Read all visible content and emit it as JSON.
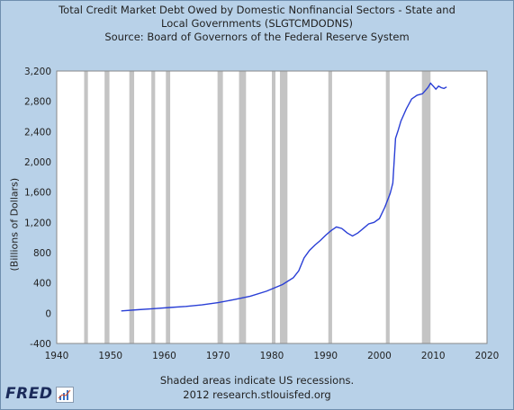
{
  "title_lines": [
    "Total Credit Market Debt Owed by Domestic Nonfinancial Sectors - State and",
    "Local Governments (SLGTCMDODNS)",
    "Source: Board of Governors of the Federal Reserve System"
  ],
  "footer": {
    "line1": "Shaded areas indicate US recessions.",
    "line2": "2012 research.stlouisfed.org"
  },
  "logo": {
    "text": "FRED",
    "icon": "fred-chart-icon"
  },
  "colors": {
    "line": "#2a3fd6",
    "recession": "#c4c4c4",
    "plot_bg": "#ffffff",
    "background": "#b8d1e8"
  },
  "chart_data": {
    "type": "line",
    "title": "Total Credit Market Debt Owed by Domestic Nonfinancial Sectors - State and Local Governments (SLGTCMDODNS)",
    "ylabel": "(Billions of Dollars)",
    "xlabel": "",
    "xlim": [
      1940,
      2020
    ],
    "ylim": [
      -400,
      3200
    ],
    "x_ticks": [
      1940,
      1950,
      1960,
      1970,
      1980,
      1990,
      2000,
      2010,
      2020
    ],
    "y_ticks": [
      -400,
      0,
      400,
      800,
      1200,
      1600,
      2000,
      2400,
      2800,
      3200
    ],
    "y_tick_labels": [
      "-400",
      "0",
      "400",
      "800",
      "1,200",
      "1,600",
      "2,000",
      "2,400",
      "2,800",
      "3,200"
    ],
    "recessions": [
      [
        1945.1,
        1945.8
      ],
      [
        1948.9,
        1949.8
      ],
      [
        1953.5,
        1954.4
      ],
      [
        1957.6,
        1958.3
      ],
      [
        1960.3,
        1961.1
      ],
      [
        1969.9,
        1970.9
      ],
      [
        1973.9,
        1975.2
      ],
      [
        1980.0,
        1980.5
      ],
      [
        1981.5,
        1982.9
      ],
      [
        1990.5,
        1991.2
      ],
      [
        2001.2,
        2001.9
      ],
      [
        2007.9,
        2009.5
      ]
    ],
    "series": [
      {
        "x": [
          1952,
          1955,
          1958,
          1961,
          1964,
          1967,
          1970,
          1973,
          1976,
          1979,
          1982,
          1984,
          1985,
          1986,
          1987,
          1988,
          1989,
          1990,
          1991,
          1992,
          1993,
          1994,
          1995,
          1996,
          1997,
          1998,
          1999,
          2000,
          2001,
          2002,
          2002.5,
          2003,
          2003.5,
          2004,
          2005,
          2006,
          2007,
          2008,
          2009,
          2009.5,
          2010,
          2010.5,
          2011,
          2011.5,
          2012,
          2012.5
        ],
        "values": [
          30,
          45,
          60,
          75,
          90,
          110,
          140,
          180,
          225,
          290,
          380,
          470,
          560,
          730,
          830,
          900,
          960,
          1030,
          1090,
          1140,
          1120,
          1060,
          1020,
          1060,
          1120,
          1180,
          1200,
          1250,
          1400,
          1580,
          1720,
          2310,
          2420,
          2540,
          2700,
          2830,
          2880,
          2900,
          2980,
          3040,
          3000,
          2960,
          3000,
          2980,
          2970,
          2990
        ]
      }
    ],
    "grid": true
  }
}
